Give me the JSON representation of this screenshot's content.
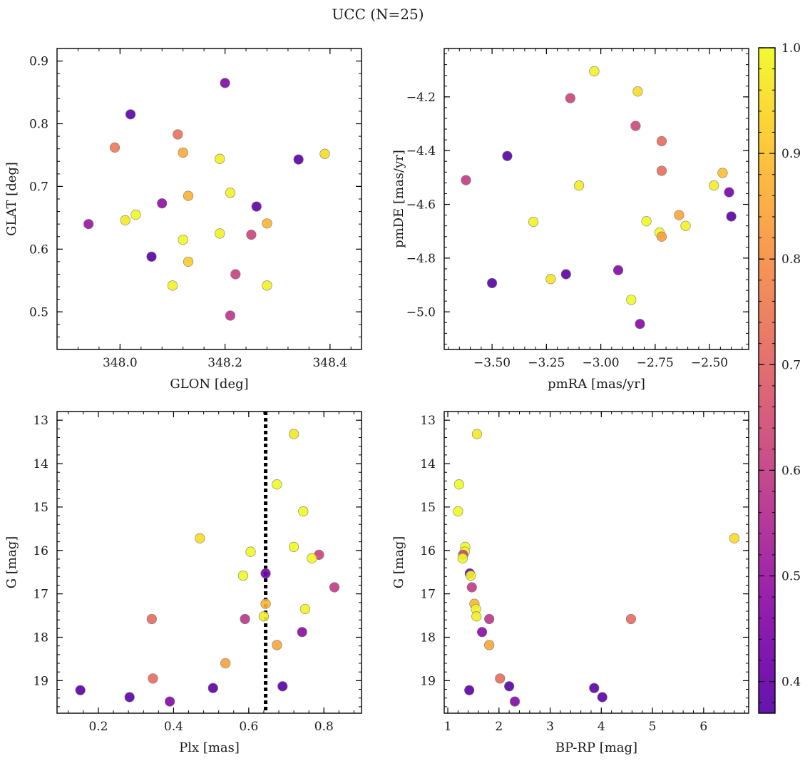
{
  "figure": {
    "title": "UCC (N=25)"
  },
  "colorbar": {
    "range": [
      0.37,
      1.0
    ],
    "ticks": [
      0.4,
      0.5,
      0.6,
      0.7,
      0.8,
      0.9,
      1.0
    ],
    "tick_labels": [
      "0.4",
      "0.5",
      "0.6",
      "0.7",
      "0.8",
      "0.9",
      "1.0"
    ],
    "colormap": "plasma"
  },
  "chart_data": [
    {
      "type": "scatter",
      "xlabel": "GLON [deg]",
      "ylabel": "GLAT [deg]",
      "xlim": [
        347.88,
        348.46
      ],
      "ylim": [
        0.44,
        0.92
      ],
      "xticks": [
        348.0,
        348.2,
        348.4
      ],
      "xtick_labels": [
        "348.0",
        "348.2",
        "348.4"
      ],
      "yticks": [
        0.5,
        0.6,
        0.7,
        0.8,
        0.9
      ],
      "ytick_labels": [
        "0.5",
        "0.6",
        "0.7",
        "0.8",
        "0.9"
      ],
      "points": [
        {
          "x": 348.2,
          "y": 0.865,
          "c": 0.45
        },
        {
          "x": 348.02,
          "y": 0.815,
          "c": 0.38
        },
        {
          "x": 348.11,
          "y": 0.783,
          "c": 0.73
        },
        {
          "x": 347.99,
          "y": 0.762,
          "c": 0.75
        },
        {
          "x": 348.12,
          "y": 0.754,
          "c": 0.86
        },
        {
          "x": 348.39,
          "y": 0.752,
          "c": 0.95
        },
        {
          "x": 348.19,
          "y": 0.744,
          "c": 0.98
        },
        {
          "x": 348.34,
          "y": 0.743,
          "c": 0.38
        },
        {
          "x": 348.21,
          "y": 0.69,
          "c": 0.99
        },
        {
          "x": 348.13,
          "y": 0.685,
          "c": 0.87
        },
        {
          "x": 348.08,
          "y": 0.673,
          "c": 0.48
        },
        {
          "x": 348.26,
          "y": 0.668,
          "c": 0.39
        },
        {
          "x": 348.03,
          "y": 0.655,
          "c": 1.0
        },
        {
          "x": 348.01,
          "y": 0.646,
          "c": 0.97
        },
        {
          "x": 348.28,
          "y": 0.641,
          "c": 0.88
        },
        {
          "x": 347.94,
          "y": 0.64,
          "c": 0.5
        },
        {
          "x": 348.19,
          "y": 0.625,
          "c": 0.99
        },
        {
          "x": 348.25,
          "y": 0.623,
          "c": 0.62
        },
        {
          "x": 348.12,
          "y": 0.615,
          "c": 1.0
        },
        {
          "x": 348.06,
          "y": 0.588,
          "c": 0.37
        },
        {
          "x": 348.13,
          "y": 0.58,
          "c": 0.92
        },
        {
          "x": 348.22,
          "y": 0.56,
          "c": 0.61
        },
        {
          "x": 348.1,
          "y": 0.542,
          "c": 0.99
        },
        {
          "x": 348.28,
          "y": 0.542,
          "c": 0.99
        },
        {
          "x": 348.21,
          "y": 0.494,
          "c": 0.58
        }
      ]
    },
    {
      "type": "scatter",
      "xlabel": "pmRA [mas/yr]",
      "ylabel": "pmDE [mas/yr]",
      "xlim": [
        -3.72,
        -2.32
      ],
      "ylim": [
        -5.14,
        -4.02
      ],
      "xticks": [
        -3.5,
        -3.25,
        -3.0,
        -2.75,
        -2.5
      ],
      "xtick_labels": [
        "−3.50",
        "−3.25",
        "−3.00",
        "−2.75",
        "−2.50"
      ],
      "yticks": [
        -5.0,
        -4.8,
        -4.6,
        -4.4,
        -4.2
      ],
      "ytick_labels": [
        "−5.0",
        "−4.8",
        "−4.6",
        "−4.4",
        "−4.2"
      ],
      "points": [
        {
          "x": -3.03,
          "y": -4.105,
          "c": 0.99
        },
        {
          "x": -2.83,
          "y": -4.18,
          "c": 0.95
        },
        {
          "x": -3.14,
          "y": -4.205,
          "c": 0.62
        },
        {
          "x": -2.84,
          "y": -4.308,
          "c": 0.63
        },
        {
          "x": -2.72,
          "y": -4.365,
          "c": 0.72
        },
        {
          "x": -3.43,
          "y": -4.42,
          "c": 0.37
        },
        {
          "x": -2.72,
          "y": -4.475,
          "c": 0.73
        },
        {
          "x": -2.44,
          "y": -4.483,
          "c": 0.9
        },
        {
          "x": -3.62,
          "y": -4.51,
          "c": 0.6
        },
        {
          "x": -3.1,
          "y": -4.53,
          "c": 0.98
        },
        {
          "x": -2.48,
          "y": -4.53,
          "c": 0.98
        },
        {
          "x": -2.41,
          "y": -4.555,
          "c": 0.43
        },
        {
          "x": -2.64,
          "y": -4.64,
          "c": 0.85
        },
        {
          "x": -2.4,
          "y": -4.645,
          "c": 0.38
        },
        {
          "x": -2.79,
          "y": -4.663,
          "c": 1.0
        },
        {
          "x": -3.31,
          "y": -4.665,
          "c": 0.99
        },
        {
          "x": -2.61,
          "y": -4.68,
          "c": 0.99
        },
        {
          "x": -2.73,
          "y": -4.705,
          "c": 1.0
        },
        {
          "x": -2.72,
          "y": -4.72,
          "c": 0.83
        },
        {
          "x": -2.92,
          "y": -4.845,
          "c": 0.45
        },
        {
          "x": -3.16,
          "y": -4.86,
          "c": 0.38
        },
        {
          "x": -3.23,
          "y": -4.878,
          "c": 0.96
        },
        {
          "x": -3.5,
          "y": -4.893,
          "c": 0.37
        },
        {
          "x": -2.86,
          "y": -4.955,
          "c": 1.0
        },
        {
          "x": -2.82,
          "y": -5.045,
          "c": 0.46
        }
      ]
    },
    {
      "type": "scatter",
      "xlabel": "Plx [mas]",
      "ylabel": "G [mag]",
      "xlim": [
        0.09,
        0.9
      ],
      "ylim": [
        19.75,
        12.8
      ],
      "inverted_y": true,
      "xticks": [
        0.2,
        0.4,
        0.6,
        0.8
      ],
      "xtick_labels": [
        "0.2",
        "0.4",
        "0.6",
        "0.8"
      ],
      "yticks": [
        13,
        14,
        15,
        16,
        17,
        18,
        19
      ],
      "ytick_labels": [
        "13",
        "14",
        "15",
        "16",
        "17",
        "18",
        "19"
      ],
      "vline": {
        "x": 0.645,
        "style": "dotted",
        "color": "#000000"
      },
      "points": [
        {
          "x": 0.72,
          "y": 13.32,
          "c": 0.97
        },
        {
          "x": 0.675,
          "y": 14.48,
          "c": 1.0
        },
        {
          "x": 0.745,
          "y": 15.1,
          "c": 1.0
        },
        {
          "x": 0.47,
          "y": 15.72,
          "c": 0.95
        },
        {
          "x": 0.72,
          "y": 15.92,
          "c": 1.0
        },
        {
          "x": 0.605,
          "y": 16.03,
          "c": 1.0
        },
        {
          "x": 0.787,
          "y": 16.1,
          "c": 0.62
        },
        {
          "x": 0.768,
          "y": 16.18,
          "c": 1.0
        },
        {
          "x": 0.645,
          "y": 16.53,
          "c": 0.42
        },
        {
          "x": 0.585,
          "y": 16.58,
          "c": 1.0
        },
        {
          "x": 0.828,
          "y": 16.85,
          "c": 0.6
        },
        {
          "x": 0.645,
          "y": 17.23,
          "c": 0.88
        },
        {
          "x": 0.75,
          "y": 17.35,
          "c": 0.99
        },
        {
          "x": 0.64,
          "y": 17.52,
          "c": 0.98
        },
        {
          "x": 0.342,
          "y": 17.58,
          "c": 0.72
        },
        {
          "x": 0.59,
          "y": 17.58,
          "c": 0.58
        },
        {
          "x": 0.742,
          "y": 17.88,
          "c": 0.47
        },
        {
          "x": 0.675,
          "y": 18.18,
          "c": 0.85
        },
        {
          "x": 0.538,
          "y": 18.6,
          "c": 0.84
        },
        {
          "x": 0.345,
          "y": 18.95,
          "c": 0.72
        },
        {
          "x": 0.69,
          "y": 19.13,
          "c": 0.37
        },
        {
          "x": 0.505,
          "y": 19.17,
          "c": 0.38
        },
        {
          "x": 0.152,
          "y": 19.22,
          "c": 0.38
        },
        {
          "x": 0.283,
          "y": 19.38,
          "c": 0.38
        },
        {
          "x": 0.39,
          "y": 19.48,
          "c": 0.46
        }
      ]
    },
    {
      "type": "scatter",
      "xlabel": "BP-RP [mag]",
      "ylabel": "G [mag]",
      "xlim": [
        0.93,
        6.88
      ],
      "ylim": [
        19.75,
        12.8
      ],
      "inverted_y": true,
      "xticks": [
        1,
        2,
        3,
        4,
        5,
        6
      ],
      "xtick_labels": [
        "1",
        "2",
        "3",
        "4",
        "5",
        "6"
      ],
      "yticks": [
        13,
        14,
        15,
        16,
        17,
        18,
        19
      ],
      "ytick_labels": [
        "13",
        "14",
        "15",
        "16",
        "17",
        "18",
        "19"
      ],
      "points": [
        {
          "x": 1.57,
          "y": 13.32,
          "c": 0.97
        },
        {
          "x": 1.22,
          "y": 14.48,
          "c": 1.0
        },
        {
          "x": 1.2,
          "y": 15.1,
          "c": 1.0
        },
        {
          "x": 6.6,
          "y": 15.72,
          "c": 0.95
        },
        {
          "x": 1.34,
          "y": 15.92,
          "c": 1.0
        },
        {
          "x": 1.33,
          "y": 16.03,
          "c": 1.0
        },
        {
          "x": 1.3,
          "y": 16.1,
          "c": 0.62
        },
        {
          "x": 1.29,
          "y": 16.18,
          "c": 1.0
        },
        {
          "x": 1.43,
          "y": 16.53,
          "c": 0.42
        },
        {
          "x": 1.45,
          "y": 16.58,
          "c": 1.0
        },
        {
          "x": 1.47,
          "y": 16.85,
          "c": 0.6
        },
        {
          "x": 1.52,
          "y": 17.23,
          "c": 0.88
        },
        {
          "x": 1.55,
          "y": 17.35,
          "c": 0.99
        },
        {
          "x": 1.56,
          "y": 17.52,
          "c": 0.98
        },
        {
          "x": 4.58,
          "y": 17.58,
          "c": 0.72
        },
        {
          "x": 1.81,
          "y": 17.58,
          "c": 0.58
        },
        {
          "x": 1.67,
          "y": 17.88,
          "c": 0.47
        },
        {
          "x": 1.81,
          "y": 18.18,
          "c": 0.85
        },
        {
          "x": 2.02,
          "y": 18.95,
          "c": 0.72
        },
        {
          "x": 2.2,
          "y": 19.13,
          "c": 0.37
        },
        {
          "x": 3.86,
          "y": 19.17,
          "c": 0.38
        },
        {
          "x": 1.42,
          "y": 19.22,
          "c": 0.38
        },
        {
          "x": 4.02,
          "y": 19.38,
          "c": 0.38
        },
        {
          "x": 2.31,
          "y": 19.48,
          "c": 0.46
        }
      ]
    }
  ]
}
